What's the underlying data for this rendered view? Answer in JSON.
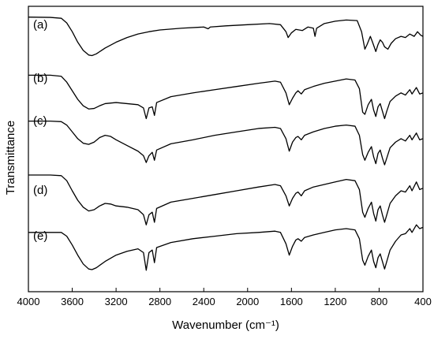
{
  "chart_data": {
    "type": "line",
    "xlabel": "Wavenumber (cm⁻¹)",
    "ylabel": "Transmittance",
    "xlim": [
      4000,
      400
    ],
    "x_reversed": true,
    "y_ticks_shown": false,
    "grid": false,
    "x_ticks": [
      "4000",
      "3600",
      "3200",
      "2800",
      "2400",
      "2000",
      "1600",
      "1200",
      "800",
      "400"
    ],
    "series": [
      {
        "name": "(a)",
        "points": [
          [
            4000,
            0.95
          ],
          [
            3800,
            0.945
          ],
          [
            3700,
            0.93
          ],
          [
            3650,
            0.85
          ],
          [
            3600,
            0.7
          ],
          [
            3550,
            0.52
          ],
          [
            3500,
            0.38
          ],
          [
            3450,
            0.3
          ],
          [
            3420,
            0.29
          ],
          [
            3380,
            0.32
          ],
          [
            3300,
            0.42
          ],
          [
            3200,
            0.52
          ],
          [
            3100,
            0.6
          ],
          [
            3000,
            0.66
          ],
          [
            2900,
            0.7
          ],
          [
            2800,
            0.73
          ],
          [
            2600,
            0.76
          ],
          [
            2400,
            0.78
          ],
          [
            2360,
            0.75
          ],
          [
            2340,
            0.78
          ],
          [
            2200,
            0.8
          ],
          [
            2000,
            0.82
          ],
          [
            1800,
            0.84
          ],
          [
            1700,
            0.82
          ],
          [
            1650,
            0.7
          ],
          [
            1630,
            0.6
          ],
          [
            1600,
            0.68
          ],
          [
            1560,
            0.74
          ],
          [
            1500,
            0.72
          ],
          [
            1450,
            0.78
          ],
          [
            1400,
            0.76
          ],
          [
            1385,
            0.62
          ],
          [
            1370,
            0.76
          ],
          [
            1300,
            0.84
          ],
          [
            1200,
            0.88
          ],
          [
            1100,
            0.9
          ],
          [
            1000,
            0.89
          ],
          [
            960,
            0.7
          ],
          [
            930,
            0.4
          ],
          [
            910,
            0.48
          ],
          [
            880,
            0.62
          ],
          [
            860,
            0.52
          ],
          [
            830,
            0.36
          ],
          [
            810,
            0.48
          ],
          [
            790,
            0.56
          ],
          [
            770,
            0.52
          ],
          [
            750,
            0.44
          ],
          [
            720,
            0.4
          ],
          [
            690,
            0.5
          ],
          [
            650,
            0.58
          ],
          [
            600,
            0.62
          ],
          [
            560,
            0.6
          ],
          [
            520,
            0.66
          ],
          [
            480,
            0.62
          ],
          [
            450,
            0.7
          ],
          [
            420,
            0.64
          ],
          [
            400,
            0.62
          ]
        ]
      },
      {
        "name": "(b)",
        "points": [
          [
            4000,
            0.95
          ],
          [
            3800,
            0.95
          ],
          [
            3700,
            0.93
          ],
          [
            3650,
            0.82
          ],
          [
            3600,
            0.66
          ],
          [
            3550,
            0.5
          ],
          [
            3500,
            0.38
          ],
          [
            3450,
            0.32
          ],
          [
            3400,
            0.33
          ],
          [
            3350,
            0.38
          ],
          [
            3300,
            0.42
          ],
          [
            3200,
            0.44
          ],
          [
            3100,
            0.42
          ],
          [
            3000,
            0.4
          ],
          [
            2950,
            0.34
          ],
          [
            2925,
            0.14
          ],
          [
            2900,
            0.34
          ],
          [
            2870,
            0.36
          ],
          [
            2850,
            0.2
          ],
          [
            2830,
            0.44
          ],
          [
            2700,
            0.55
          ],
          [
            2500,
            0.62
          ],
          [
            2300,
            0.68
          ],
          [
            2100,
            0.74
          ],
          [
            1900,
            0.8
          ],
          [
            1750,
            0.84
          ],
          [
            1700,
            0.82
          ],
          [
            1650,
            0.62
          ],
          [
            1620,
            0.4
          ],
          [
            1590,
            0.52
          ],
          [
            1560,
            0.62
          ],
          [
            1540,
            0.66
          ],
          [
            1510,
            0.6
          ],
          [
            1480,
            0.68
          ],
          [
            1400,
            0.74
          ],
          [
            1300,
            0.8
          ],
          [
            1200,
            0.84
          ],
          [
            1100,
            0.88
          ],
          [
            1020,
            0.86
          ],
          [
            980,
            0.7
          ],
          [
            950,
            0.26
          ],
          [
            930,
            0.22
          ],
          [
            900,
            0.4
          ],
          [
            870,
            0.5
          ],
          [
            850,
            0.3
          ],
          [
            830,
            0.18
          ],
          [
            810,
            0.36
          ],
          [
            790,
            0.42
          ],
          [
            770,
            0.28
          ],
          [
            750,
            0.14
          ],
          [
            730,
            0.28
          ],
          [
            700,
            0.46
          ],
          [
            650,
            0.56
          ],
          [
            600,
            0.62
          ],
          [
            560,
            0.58
          ],
          [
            520,
            0.68
          ],
          [
            500,
            0.6
          ],
          [
            460,
            0.72
          ],
          [
            430,
            0.6
          ],
          [
            400,
            0.62
          ]
        ]
      },
      {
        "name": "(c)",
        "points": [
          [
            4000,
            0.95
          ],
          [
            3800,
            0.95
          ],
          [
            3700,
            0.94
          ],
          [
            3650,
            0.88
          ],
          [
            3600,
            0.76
          ],
          [
            3550,
            0.64
          ],
          [
            3500,
            0.56
          ],
          [
            3450,
            0.54
          ],
          [
            3400,
            0.58
          ],
          [
            3350,
            0.66
          ],
          [
            3300,
            0.7
          ],
          [
            3250,
            0.68
          ],
          [
            3200,
            0.62
          ],
          [
            3100,
            0.52
          ],
          [
            3000,
            0.42
          ],
          [
            2950,
            0.34
          ],
          [
            2925,
            0.22
          ],
          [
            2900,
            0.34
          ],
          [
            2870,
            0.4
          ],
          [
            2850,
            0.26
          ],
          [
            2830,
            0.44
          ],
          [
            2700,
            0.55
          ],
          [
            2500,
            0.62
          ],
          [
            2300,
            0.7
          ],
          [
            2100,
            0.76
          ],
          [
            1900,
            0.82
          ],
          [
            1750,
            0.84
          ],
          [
            1700,
            0.82
          ],
          [
            1650,
            0.64
          ],
          [
            1620,
            0.42
          ],
          [
            1590,
            0.58
          ],
          [
            1560,
            0.66
          ],
          [
            1540,
            0.68
          ],
          [
            1510,
            0.62
          ],
          [
            1480,
            0.7
          ],
          [
            1400,
            0.76
          ],
          [
            1300,
            0.82
          ],
          [
            1200,
            0.86
          ],
          [
            1100,
            0.88
          ],
          [
            1020,
            0.86
          ],
          [
            980,
            0.7
          ],
          [
            950,
            0.36
          ],
          [
            930,
            0.26
          ],
          [
            900,
            0.4
          ],
          [
            870,
            0.5
          ],
          [
            850,
            0.32
          ],
          [
            830,
            0.2
          ],
          [
            810,
            0.38
          ],
          [
            790,
            0.44
          ],
          [
            770,
            0.3
          ],
          [
            750,
            0.18
          ],
          [
            730,
            0.3
          ],
          [
            700,
            0.48
          ],
          [
            650,
            0.58
          ],
          [
            600,
            0.64
          ],
          [
            560,
            0.6
          ],
          [
            520,
            0.7
          ],
          [
            500,
            0.62
          ],
          [
            460,
            0.74
          ],
          [
            430,
            0.62
          ],
          [
            400,
            0.64
          ]
        ]
      },
      {
        "name": "(d)",
        "points": [
          [
            4000,
            0.95
          ],
          [
            3800,
            0.95
          ],
          [
            3700,
            0.94
          ],
          [
            3650,
            0.86
          ],
          [
            3600,
            0.7
          ],
          [
            3550,
            0.55
          ],
          [
            3500,
            0.44
          ],
          [
            3450,
            0.38
          ],
          [
            3400,
            0.4
          ],
          [
            3350,
            0.46
          ],
          [
            3300,
            0.5
          ],
          [
            3250,
            0.49
          ],
          [
            3200,
            0.46
          ],
          [
            3100,
            0.44
          ],
          [
            3000,
            0.4
          ],
          [
            2950,
            0.32
          ],
          [
            2925,
            0.16
          ],
          [
            2900,
            0.32
          ],
          [
            2870,
            0.36
          ],
          [
            2850,
            0.2
          ],
          [
            2830,
            0.42
          ],
          [
            2700,
            0.52
          ],
          [
            2500,
            0.58
          ],
          [
            2300,
            0.64
          ],
          [
            2100,
            0.7
          ],
          [
            1900,
            0.76
          ],
          [
            1750,
            0.8
          ],
          [
            1700,
            0.78
          ],
          [
            1650,
            0.62
          ],
          [
            1620,
            0.46
          ],
          [
            1590,
            0.58
          ],
          [
            1560,
            0.66
          ],
          [
            1540,
            0.68
          ],
          [
            1510,
            0.62
          ],
          [
            1480,
            0.7
          ],
          [
            1400,
            0.76
          ],
          [
            1300,
            0.8
          ],
          [
            1200,
            0.84
          ],
          [
            1100,
            0.88
          ],
          [
            1020,
            0.86
          ],
          [
            980,
            0.72
          ],
          [
            950,
            0.36
          ],
          [
            930,
            0.28
          ],
          [
            900,
            0.42
          ],
          [
            870,
            0.52
          ],
          [
            850,
            0.34
          ],
          [
            830,
            0.22
          ],
          [
            810,
            0.4
          ],
          [
            790,
            0.46
          ],
          [
            770,
            0.32
          ],
          [
            750,
            0.2
          ],
          [
            730,
            0.32
          ],
          [
            700,
            0.5
          ],
          [
            650,
            0.62
          ],
          [
            600,
            0.7
          ],
          [
            560,
            0.68
          ],
          [
            520,
            0.78
          ],
          [
            500,
            0.7
          ],
          [
            460,
            0.84
          ],
          [
            430,
            0.72
          ],
          [
            400,
            0.74
          ]
        ]
      },
      {
        "name": "(e)",
        "points": [
          [
            4000,
            0.84
          ],
          [
            3800,
            0.84
          ],
          [
            3700,
            0.84
          ],
          [
            3650,
            0.78
          ],
          [
            3600,
            0.64
          ],
          [
            3550,
            0.48
          ],
          [
            3500,
            0.34
          ],
          [
            3450,
            0.26
          ],
          [
            3420,
            0.25
          ],
          [
            3380,
            0.28
          ],
          [
            3300,
            0.38
          ],
          [
            3200,
            0.48
          ],
          [
            3100,
            0.54
          ],
          [
            3000,
            0.58
          ],
          [
            2950,
            0.52
          ],
          [
            2925,
            0.24
          ],
          [
            2900,
            0.52
          ],
          [
            2870,
            0.56
          ],
          [
            2850,
            0.36
          ],
          [
            2830,
            0.6
          ],
          [
            2700,
            0.68
          ],
          [
            2500,
            0.74
          ],
          [
            2300,
            0.78
          ],
          [
            2100,
            0.82
          ],
          [
            1900,
            0.84
          ],
          [
            1750,
            0.86
          ],
          [
            1700,
            0.84
          ],
          [
            1650,
            0.66
          ],
          [
            1620,
            0.48
          ],
          [
            1590,
            0.62
          ],
          [
            1560,
            0.72
          ],
          [
            1540,
            0.74
          ],
          [
            1510,
            0.7
          ],
          [
            1480,
            0.76
          ],
          [
            1400,
            0.8
          ],
          [
            1300,
            0.84
          ],
          [
            1200,
            0.88
          ],
          [
            1100,
            0.9
          ],
          [
            1020,
            0.88
          ],
          [
            980,
            0.74
          ],
          [
            950,
            0.4
          ],
          [
            930,
            0.32
          ],
          [
            900,
            0.46
          ],
          [
            870,
            0.56
          ],
          [
            850,
            0.38
          ],
          [
            830,
            0.28
          ],
          [
            810,
            0.44
          ],
          [
            790,
            0.5
          ],
          [
            770,
            0.38
          ],
          [
            750,
            0.26
          ],
          [
            730,
            0.38
          ],
          [
            700,
            0.56
          ],
          [
            650,
            0.7
          ],
          [
            600,
            0.8
          ],
          [
            560,
            0.82
          ],
          [
            520,
            0.9
          ],
          [
            500,
            0.84
          ],
          [
            460,
            0.96
          ],
          [
            430,
            0.9
          ],
          [
            400,
            0.92
          ]
        ]
      }
    ]
  }
}
